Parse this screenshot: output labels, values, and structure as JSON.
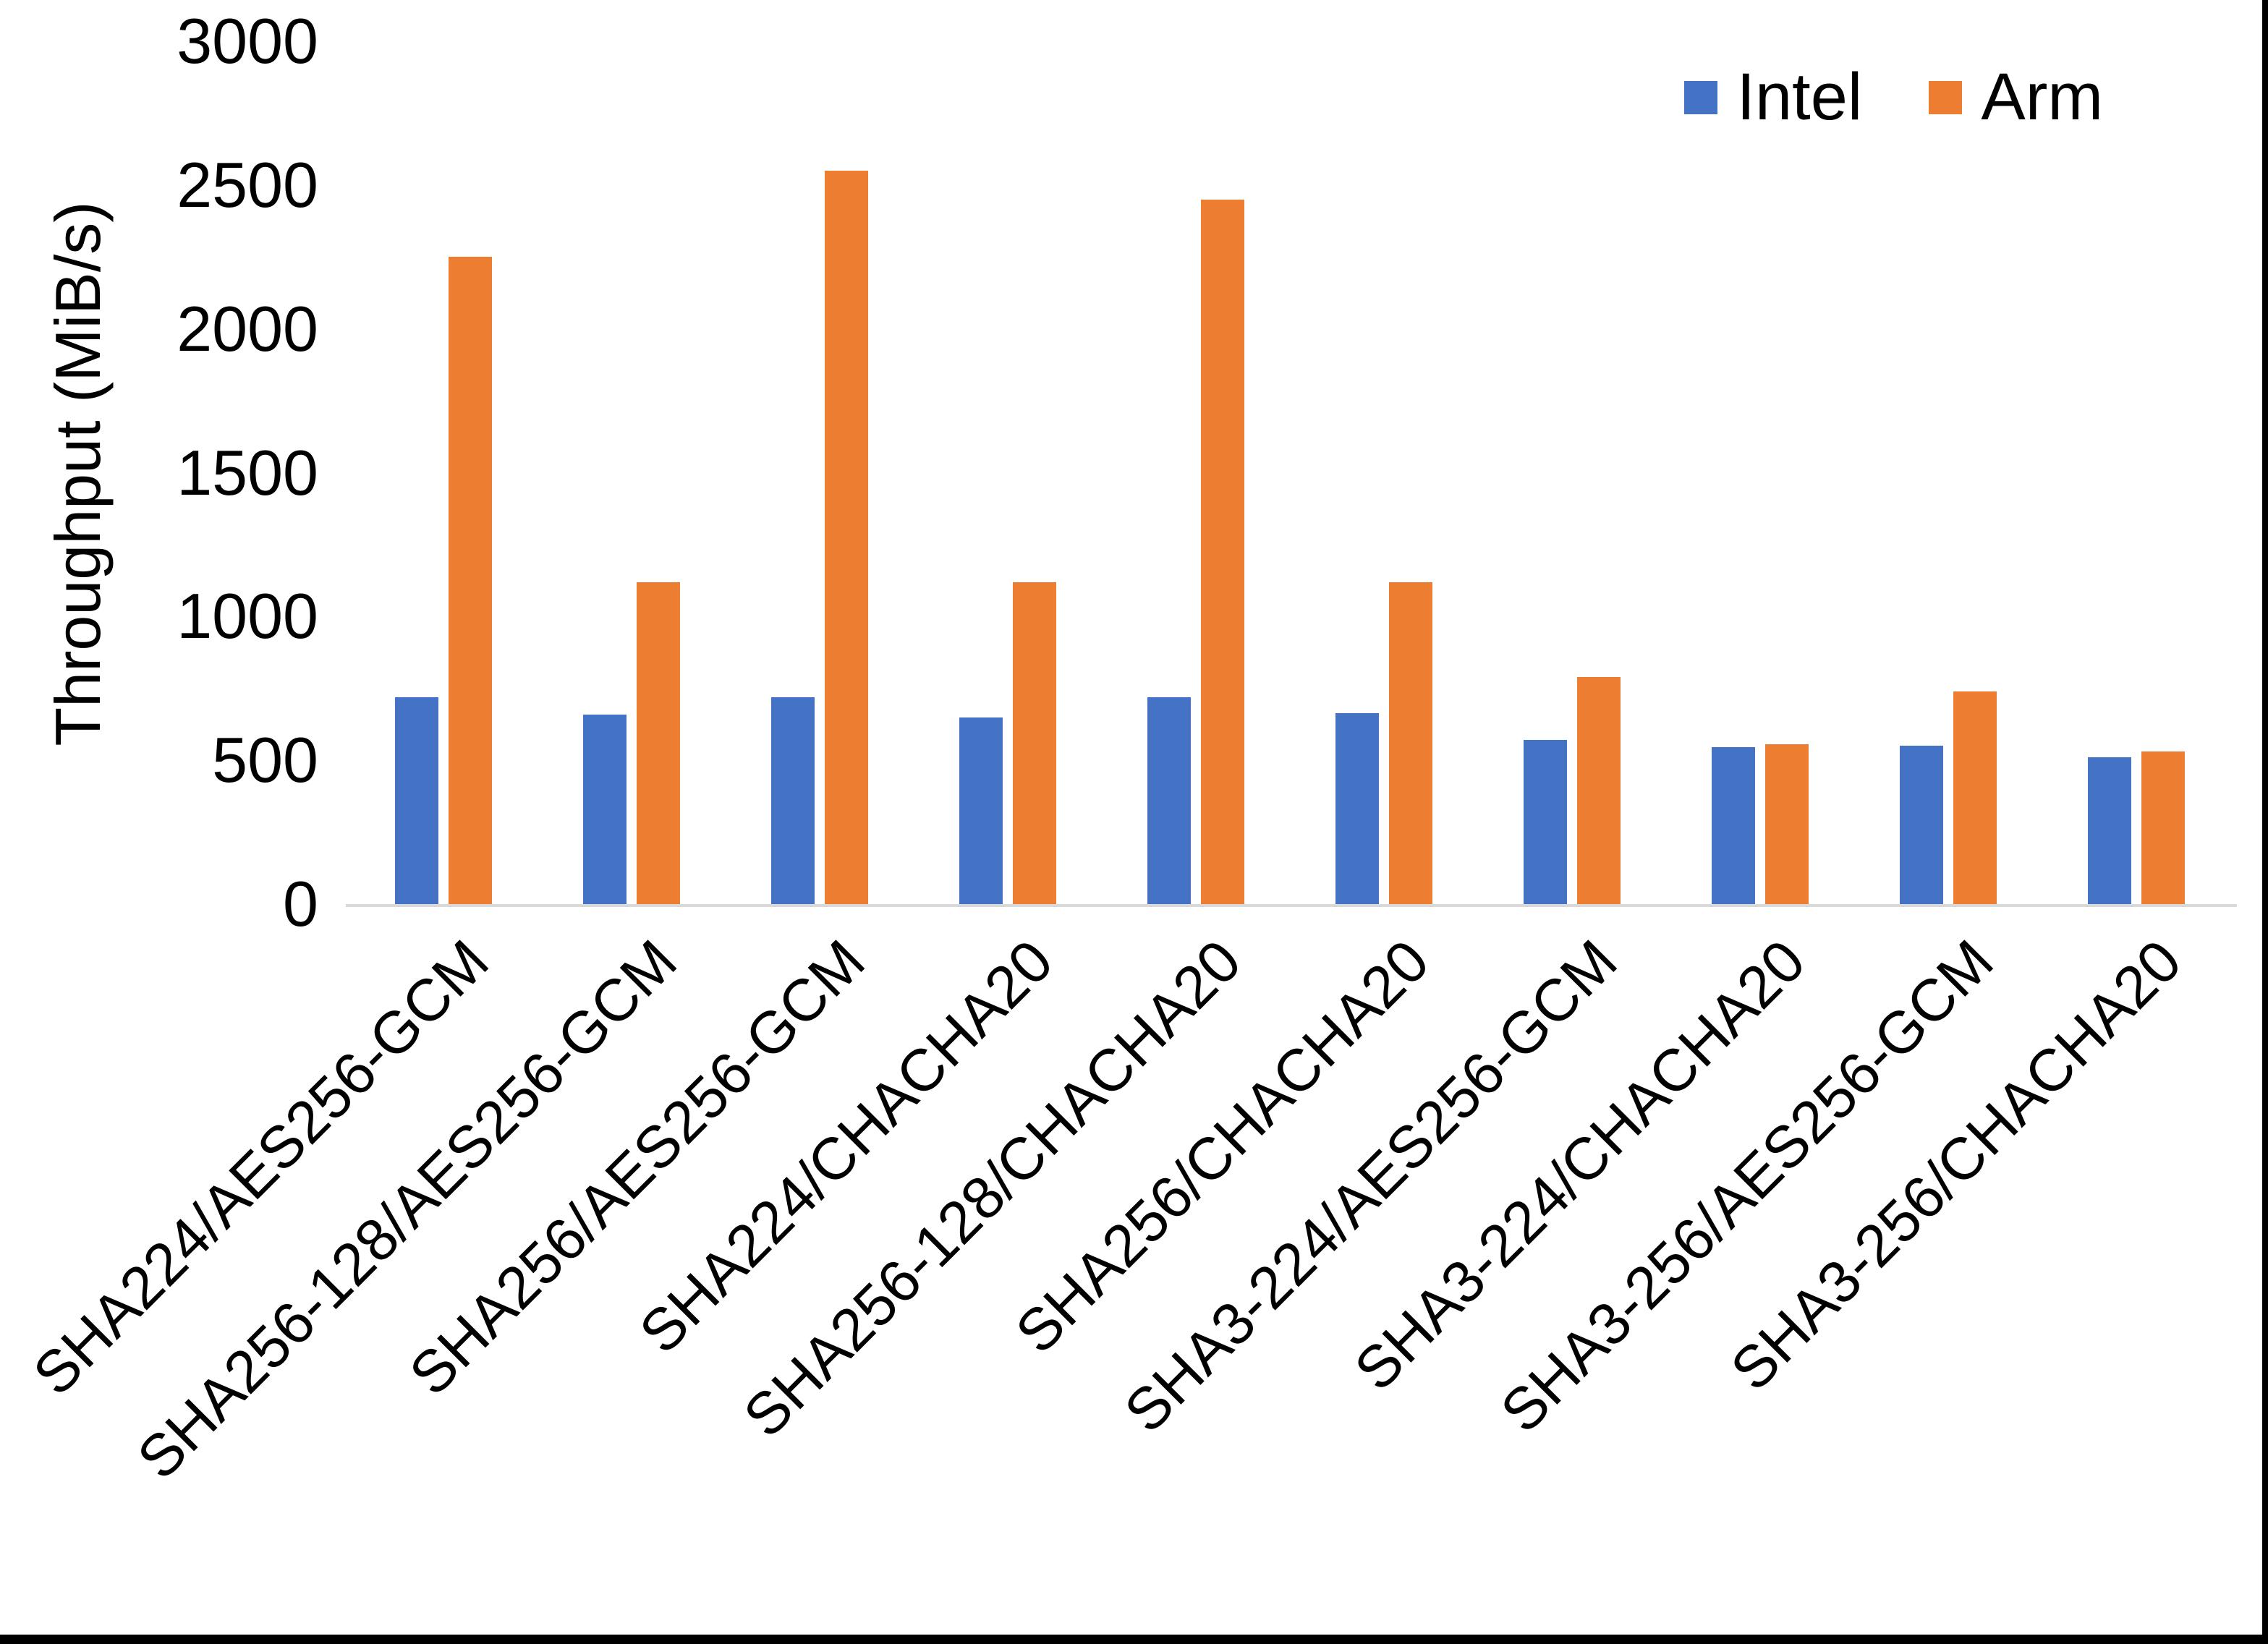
{
  "page": {
    "background": "#ffffff",
    "border_color": "#000000"
  },
  "legend": {
    "items": [
      {
        "label": "Intel",
        "color": "#4472C4"
      },
      {
        "label": "Arm",
        "color": "#ED7D31"
      }
    ]
  },
  "chart_data": {
    "type": "bar",
    "title": "",
    "xlabel": "",
    "ylabel": "Throughput (MiB/s)",
    "ylim": [
      0,
      3000
    ],
    "y_ticks": [
      0,
      500,
      1000,
      1500,
      2000,
      2500,
      3000
    ],
    "grid": "off",
    "legend_position": "top-right",
    "axis_line_color": "#d9d9d9",
    "categories": [
      "SHA224/AES256-GCM",
      "SHA256-128/AES256-GCM",
      "SHA256/AES256-GCM",
      "SHA224/CHACHA20",
      "SHA256-128/CHACHA20",
      "SHA256/CHACHA20",
      "SHA3-224/AES256-GCM",
      "SHA3-224/CHACHA20",
      "SHA3-256/AES256-GCM",
      "SHA3-256/CHACHA20"
    ],
    "series": [
      {
        "name": "Intel",
        "color": "#4472C4",
        "values": [
          720,
          660,
          720,
          650,
          720,
          665,
          570,
          545,
          550,
          510
        ]
      },
      {
        "name": "Arm",
        "color": "#ED7D31",
        "values": [
          2250,
          1120,
          2550,
          1120,
          2450,
          1120,
          790,
          555,
          740,
          530
        ]
      }
    ]
  }
}
